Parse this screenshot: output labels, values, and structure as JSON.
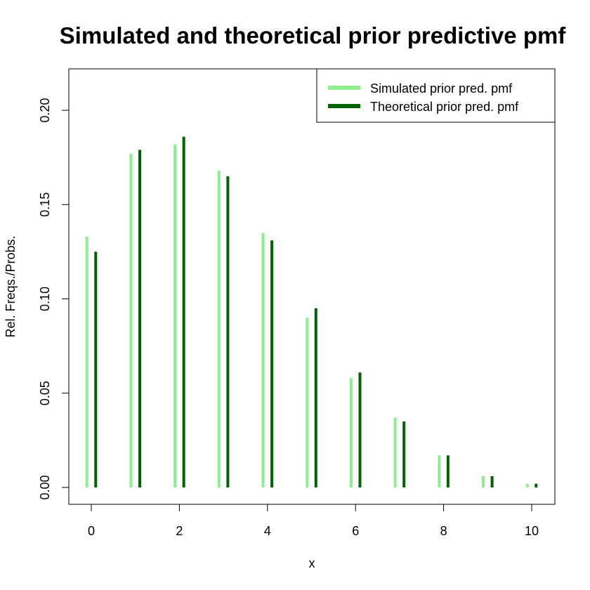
{
  "chart_data": {
    "type": "bar",
    "title": "Simulated and theoretical prior predictive pmf",
    "xlabel": "x",
    "ylabel": "Rel. Freqs./Probs.",
    "xlim": [
      -0.3,
      10.3
    ],
    "ylim": [
      0,
      0.22
    ],
    "x_ticks": [
      0,
      2,
      4,
      6,
      8,
      10
    ],
    "y_ticks": [
      0.0,
      0.05,
      0.1,
      0.15,
      0.2
    ],
    "y_tick_labels": [
      "0.00",
      "0.05",
      "0.10",
      "0.15",
      "0.20"
    ],
    "legend_position": "top-right",
    "x": [
      0,
      1,
      2,
      3,
      4,
      5,
      6,
      7,
      8,
      9,
      10
    ],
    "series": [
      {
        "name": "Simulated prior pred. pmf",
        "color": "#90EE90",
        "offset": -0.1,
        "values": [
          0.133,
          0.177,
          0.182,
          0.168,
          0.135,
          0.09,
          0.058,
          0.037,
          0.017,
          0.006,
          0.002
        ]
      },
      {
        "name": "Theoretical prior pred. pmf",
        "color": "#006400",
        "offset": 0.1,
        "values": [
          0.125,
          0.179,
          0.186,
          0.165,
          0.131,
          0.095,
          0.061,
          0.035,
          0.017,
          0.006,
          0.002
        ]
      }
    ]
  }
}
